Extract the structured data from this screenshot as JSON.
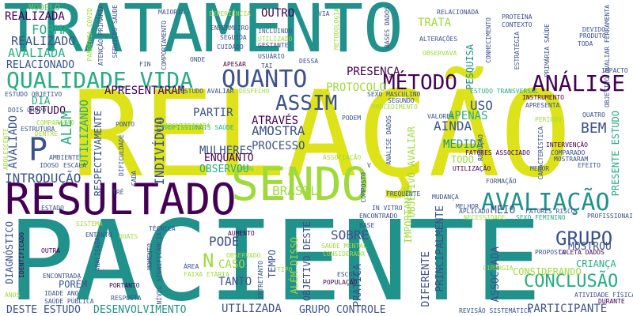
{
  "palette": {
    "yellow": "#dde318",
    "green": "#5ec962",
    "teal": "#21918c",
    "blue": "#3b528b",
    "purple": "#440154",
    "lime": "#9fda3a",
    "cyan": "#2c728e",
    "mint": "#27ad81"
  },
  "words": [
    {
      "text": "TRATAMENTO",
      "color": "teal"
    },
    {
      "text": "RELAÇÃO",
      "color": "yellow"
    },
    {
      "text": "PACIENTE",
      "color": "teal"
    },
    {
      "text": "RESULTADO",
      "color": "purple"
    },
    {
      "text": "SENDO",
      "color": "lime"
    },
    {
      "text": "QUALIDADE VIDA",
      "color": "mint"
    },
    {
      "text": "QUANTO",
      "color": "blue"
    },
    {
      "text": "MÉTODO",
      "color": "purple"
    },
    {
      "text": "ANÁLISE",
      "color": "purple"
    },
    {
      "text": "AVALIAÇÃO",
      "color": "teal"
    },
    {
      "text": "ASSIM",
      "color": "blue"
    },
    {
      "text": "GRUPO",
      "color": "blue"
    },
    {
      "text": "CONCLUSÃO",
      "color": "mint"
    },
    {
      "text": "P",
      "color": "blue"
    },
    {
      "text": "FORMA",
      "color": "mint"
    },
    {
      "text": "AVALIADA",
      "color": "mint"
    },
    {
      "text": "REALIZADO",
      "color": "blue"
    },
    {
      "text": "REALIZADA",
      "color": "purple"
    },
    {
      "text": "RELACIONADO",
      "color": "blue"
    },
    {
      "text": "MODELO",
      "color": "green"
    },
    {
      "text": "OUTRO",
      "color": "purple"
    },
    {
      "text": "TRATA",
      "color": "lime"
    },
    {
      "text": "PRESENÇA",
      "color": "purple"
    },
    {
      "text": "PROTOCOLO",
      "color": "lime"
    },
    {
      "text": "APRESENTARAM",
      "color": "purple"
    },
    {
      "text": "PARTIR",
      "color": "blue"
    },
    {
      "text": "ATRAVÉS",
      "color": "purple"
    },
    {
      "text": "AMOSTRA",
      "color": "blue"
    },
    {
      "text": "PROCESSO",
      "color": "blue"
    },
    {
      "text": "MULHERES",
      "color": "blue"
    },
    {
      "text": "ENQUANTO",
      "color": "purple"
    },
    {
      "text": "OBSERVOU",
      "color": "mint"
    },
    {
      "text": "BRASIL",
      "color": "lime"
    },
    {
      "text": "INDIVÍDUO",
      "color": "blue"
    },
    {
      "text": "INTRODUÇÃO",
      "color": "blue"
    },
    {
      "text": "MEDIDA",
      "color": "teal"
    },
    {
      "text": "AINDA",
      "color": "blue"
    },
    {
      "text": "APENAS",
      "color": "mint"
    },
    {
      "text": "USO",
      "color": "blue"
    },
    {
      "text": "BEM",
      "color": "blue"
    },
    {
      "text": "TODO",
      "color": "lime"
    },
    {
      "text": "MEIO",
      "color": "blue"
    },
    {
      "text": "MOSTROU",
      "color": "blue"
    },
    {
      "text": "CRIANÇA",
      "color": "mint"
    },
    {
      "text": "CONSIDERANDO",
      "color": "lime"
    },
    {
      "text": "PARTICIPANTE",
      "color": "blue"
    },
    {
      "text": "GRUPO CONTROLE",
      "color": "blue"
    },
    {
      "text": "DESTE ESTUDO",
      "color": "blue"
    },
    {
      "text": "DESENVOLVIMENTO",
      "color": "teal"
    },
    {
      "text": "UTILIZADA",
      "color": "blue"
    },
    {
      "text": "SOBRE",
      "color": "blue"
    },
    {
      "text": "PODE",
      "color": "blue"
    },
    {
      "text": "TANTO",
      "color": "blue"
    },
    {
      "text": "N",
      "color": "lime"
    },
    {
      "text": "CASO",
      "color": "lime"
    },
    {
      "text": "PORÉM",
      "color": "blue"
    },
    {
      "text": "PRÁTICA",
      "color": "blue"
    },
    {
      "text": "DIA",
      "color": "mint"
    },
    {
      "text": "ESTUDO",
      "color": "purple"
    },
    {
      "text": "ALÉM",
      "color": "mint"
    },
    {
      "text": "UTILIZANDO",
      "color": "mint"
    },
    {
      "text": "RESPECTIVAMENTE",
      "color": "blue"
    },
    {
      "text": "AVALIADO",
      "color": "blue"
    },
    {
      "text": "DIAGNÓSTICO",
      "color": "blue"
    },
    {
      "text": "PESQUISA",
      "color": "teal"
    },
    {
      "text": "PRESENTE ESTUDO",
      "color": "mint"
    },
    {
      "text": "OBJETIVO AVALIAR",
      "color": "lime"
    },
    {
      "text": "IMPORTANTE",
      "color": "lime"
    },
    {
      "text": "PRINCIPALMENTE",
      "color": "blue"
    },
    {
      "text": "DIFERENTE",
      "color": "blue"
    },
    {
      "text": "ASSOCIADA",
      "color": "blue"
    },
    {
      "text": "OBJETIVO DESTE",
      "color": "blue"
    },
    {
      "text": "ALÉM DISSO",
      "color": "lime"
    },
    {
      "text": "TEMPO",
      "color": "blue"
    },
    {
      "text": "ESTUDO OBJETIVO",
      "color": "blue"
    },
    {
      "text": "ESTUDO AVALIAR",
      "color": "blue"
    },
    {
      "text": "ESTUDO TRANSVERSAL",
      "color": "mint"
    },
    {
      "text": "SEXO MASCULINO",
      "color": "blue"
    },
    {
      "text": "SEXO FEMININO",
      "color": "mint"
    },
    {
      "text": "SEGUNDO",
      "color": "blue"
    },
    {
      "text": "PROCEDIMENTO",
      "color": "lime"
    },
    {
      "text": "INSTRUMENTO",
      "color": "purple"
    },
    {
      "text": "APRESENTA",
      "color": "blue"
    },
    {
      "text": "QUATRO",
      "color": "blue"
    },
    {
      "text": "VALORES",
      "color": "blue"
    },
    {
      "text": "INTERVENÇÃO",
      "color": "purple"
    },
    {
      "text": "COMPARADO",
      "color": "blue"
    },
    {
      "text": "MOSTRARAM",
      "color": "blue"
    },
    {
      "text": "EFEITO",
      "color": "blue"
    },
    {
      "text": "FATORES ASSOCIADO",
      "color": "purple"
    },
    {
      "text": "FATORES RISCO",
      "color": "blue"
    },
    {
      "text": "APLICADO",
      "color": "blue"
    },
    {
      "text": "MENOR",
      "color": "blue"
    },
    {
      "text": "FORMAÇÃO",
      "color": "blue"
    },
    {
      "text": "PROFISSIONAIS",
      "color": "blue"
    },
    {
      "text": "PROFISSIONAIS SAÚDE",
      "color": "mint"
    },
    {
      "text": "PONTO",
      "color": "blue"
    },
    {
      "text": "COMPARAÇÃO",
      "color": "lime"
    },
    {
      "text": "ESTRUTURA",
      "color": "blue"
    },
    {
      "text": "AMBIENTE",
      "color": "blue"
    },
    {
      "text": "ESCALA",
      "color": "blue"
    },
    {
      "text": "IDOSO",
      "color": "blue"
    },
    {
      "text": "ASSOCIAÇÃO",
      "color": "lime"
    },
    {
      "text": "TOTAL",
      "color": "blue"
    },
    {
      "text": "DIFICULDADE",
      "color": "blue"
    },
    {
      "text": "CADA",
      "color": "blue"
    },
    {
      "text": "SISTEMA",
      "color": "lime"
    },
    {
      "text": "TÉCNICA",
      "color": "blue"
    },
    {
      "text": "AUMENTO",
      "color": "purple"
    },
    {
      "text": "OBSERVADO",
      "color": "lime"
    },
    {
      "text": "ÁREA",
      "color": "blue"
    },
    {
      "text": "FAIXA ETÁRIA",
      "color": "lime"
    },
    {
      "text": "NÍVEL SIGNIFICÂNCIA",
      "color": "blue"
    },
    {
      "text": "MOMENTO",
      "color": "blue"
    },
    {
      "text": "PORTANTO",
      "color": "purple"
    },
    {
      "text": "RESPOSTA",
      "color": "blue"
    },
    {
      "text": "SAÚDE PÚBLICA",
      "color": "blue"
    },
    {
      "text": "IDADE ANO",
      "color": "blue"
    },
    {
      "text": "ENCONTRADA",
      "color": "blue"
    },
    {
      "text": "OUTRA",
      "color": "purple"
    },
    {
      "text": "ENTANTO",
      "color": "blue"
    },
    {
      "text": "ANALISADA",
      "color": "blue"
    },
    {
      "text": "QUAIS",
      "color": "lime"
    },
    {
      "text": "SAÚDE MENTAL",
      "color": "lime"
    },
    {
      "text": "CONSIDERADA",
      "color": "lime"
    },
    {
      "text": "POPULAÇÃO",
      "color": "purple"
    },
    {
      "text": "ESCORE",
      "color": "blue"
    },
    {
      "text": "ENCONTRADO",
      "color": "blue"
    },
    {
      "text": "BASE",
      "color": "blue"
    },
    {
      "text": "FREQUENTE",
      "color": "blue"
    },
    {
      "text": "UTILIZAÇÃO",
      "color": "purple"
    },
    {
      "text": "REVISÃO SISTEMÁTICA",
      "color": "blue"
    },
    {
      "text": "ATIVIDADE FÍSICA",
      "color": "blue"
    },
    {
      "text": "DURANTE",
      "color": "purple"
    },
    {
      "text": "COLETA DADOS",
      "color": "purple"
    },
    {
      "text": "PROPOSTA",
      "color": "blue"
    },
    {
      "text": "CIRURGIA",
      "color": "lime"
    },
    {
      "text": "PRIMÁRIA SAÚDE",
      "color": "blue"
    },
    {
      "text": "ALTERAÇÕES",
      "color": "blue"
    },
    {
      "text": "RELACIONADA",
      "color": "blue"
    },
    {
      "text": "EXPERIÊNCIA",
      "color": "lime"
    },
    {
      "text": "ATENÇÃO PRIMÁRIA",
      "color": "blue"
    },
    {
      "text": "SERVIÇOS SAÚDE",
      "color": "blue"
    },
    {
      "text": "PANDEMIA COVID",
      "color": "lime"
    },
    {
      "text": "MAIORIA",
      "color": "blue"
    },
    {
      "text": "ENFERMEIRO",
      "color": "blue"
    },
    {
      "text": "INCLUINDO",
      "color": "blue"
    },
    {
      "text": "UTILIZADO",
      "color": "lime"
    },
    {
      "text": "SEGUIDA",
      "color": "blue"
    },
    {
      "text": "GESTANTE",
      "color": "blue"
    },
    {
      "text": "USUÁRIO",
      "color": "blue"
    },
    {
      "text": "CUIDADO",
      "color": "blue"
    },
    {
      "text": "ONDE",
      "color": "blue"
    },
    {
      "text": "APESAR",
      "color": "purple"
    },
    {
      "text": "DESSA",
      "color": "blue"
    },
    {
      "text": "TAI",
      "color": "blue"
    },
    {
      "text": "FIN",
      "color": "blue"
    },
    {
      "text": "VIA",
      "color": "blue"
    },
    {
      "text": "BASES DADOS",
      "color": "blue"
    },
    {
      "text": "OBSERVAVA",
      "color": "lime"
    },
    {
      "text": "CONHECIMENTO",
      "color": "blue"
    },
    {
      "text": "PROTEÍNA",
      "color": "blue"
    },
    {
      "text": "CONTEXTO",
      "color": "blue"
    },
    {
      "text": "DEVIDO",
      "color": "blue"
    },
    {
      "text": "PRODUTO",
      "color": "blue"
    },
    {
      "text": "TODA",
      "color": "blue"
    },
    {
      "text": "IMPACTO",
      "color": "blue"
    },
    {
      "text": "ESTRATÉGIA",
      "color": "blue"
    },
    {
      "text": "OBJETIVO AVALIAR FERRAMENTA",
      "color": "blue"
    },
    {
      "text": "PERÍODO",
      "color": "lime"
    },
    {
      "text": "REDUÇÃO",
      "color": "blue"
    },
    {
      "text": "CARACTERÍSTICA",
      "color": "blue"
    },
    {
      "text": "METODOLOGIA",
      "color": "lime"
    },
    {
      "text": "COMPORTAMENTO",
      "color": "blue"
    },
    {
      "text": "ANÁLISE DADOS",
      "color": "blue"
    },
    {
      "text": "NECESSIDADE",
      "color": "lime"
    },
    {
      "text": "MUDANÇA",
      "color": "blue"
    },
    {
      "text": "MELHOR",
      "color": "blue"
    },
    {
      "text": "IN VITRO",
      "color": "blue"
    },
    {
      "text": "COMPOSTO",
      "color": "blue"
    },
    {
      "text": "IDENTIFICADO",
      "color": "purple"
    },
    {
      "text": "IDENTIFICADA",
      "color": "lime"
    },
    {
      "text": "TRÊ",
      "color": "blue"
    },
    {
      "text": "DOIS GRUPO",
      "color": "blue"
    },
    {
      "text": "DENTRE",
      "color": "lime"
    },
    {
      "text": "PODEM",
      "color": "blue"
    },
    {
      "text": "V",
      "color": "blue"
    },
    {
      "text": "TIPO",
      "color": "lime"
    },
    {
      "text": "ESTADO",
      "color": "blue"
    },
    {
      "text": "ADOLESCENTE",
      "color": "lime"
    },
    {
      "text": "ANOS",
      "color": "lime"
    },
    {
      "text": "DESFECHO",
      "color": "lime"
    },
    {
      "text": "ENTRETANTO",
      "color": "blue"
    }
  ]
}
